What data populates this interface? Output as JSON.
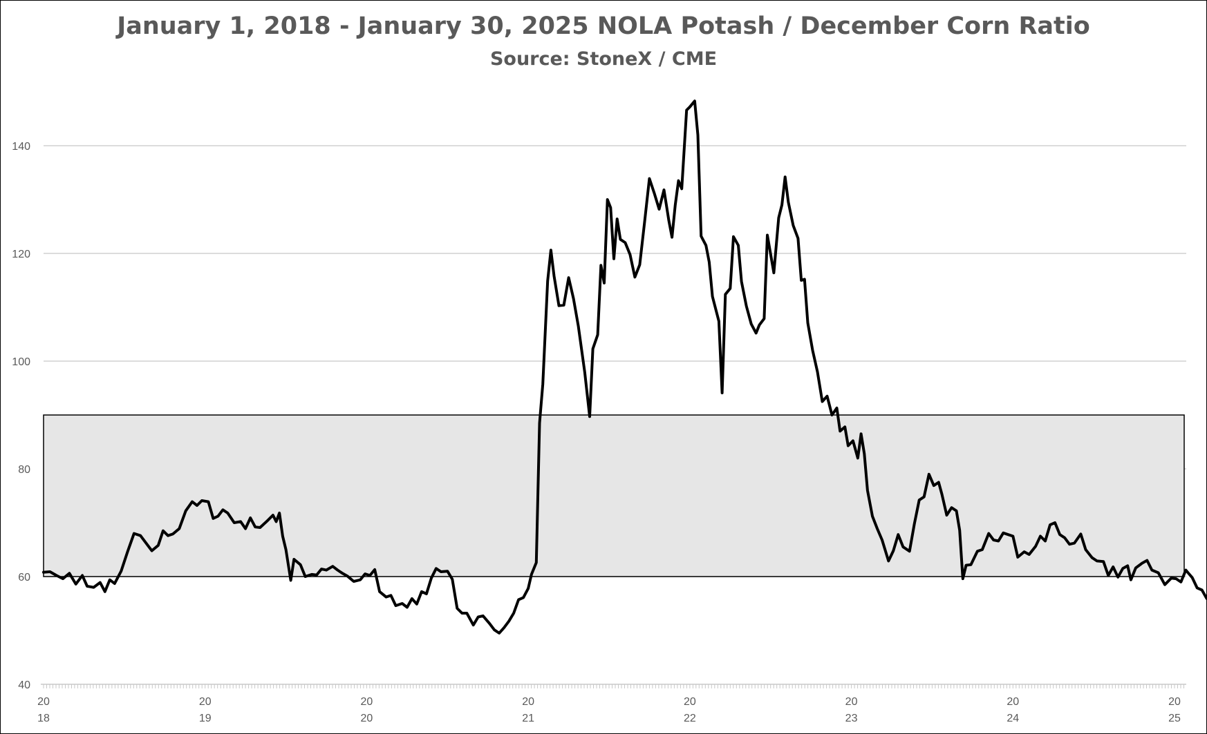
{
  "chart_data": {
    "type": "line",
    "title": "January 1, 2018 - January 30, 2025 NOLA Potash / December Corn Ratio",
    "subtitle": "Source: StoneX / CME",
    "xlabel": "",
    "ylabel": "",
    "ylim": [
      40,
      150
    ],
    "xlim": [
      2018.0,
      2025.08
    ],
    "yticks": [
      40,
      60,
      80,
      100,
      120,
      140
    ],
    "xticks": [
      {
        "x": 2018,
        "line1": "20",
        "line2": "18"
      },
      {
        "x": 2019,
        "line1": "20",
        "line2": "19"
      },
      {
        "x": 2020,
        "line1": "20",
        "line2": "20"
      },
      {
        "x": 2021,
        "line1": "20",
        "line2": "21"
      },
      {
        "x": 2022,
        "line1": "20",
        "line2": "22"
      },
      {
        "x": 2023,
        "line1": "20",
        "line2": "23"
      },
      {
        "x": 2024,
        "line1": "20",
        "line2": "24"
      },
      {
        "x": 2025,
        "line1": "20",
        "line2": "25"
      }
    ],
    "grid": true,
    "band": {
      "from": 60,
      "to": 90,
      "color": "#e6e6e6"
    },
    "series": [
      {
        "color": "#000000",
        "points": [
          [
            2018.0,
            60.8
          ],
          [
            2018.04,
            60.9
          ],
          [
            2018.08,
            60.2
          ],
          [
            2018.12,
            59.6
          ],
          [
            2018.16,
            60.6
          ],
          [
            2018.2,
            58.6
          ],
          [
            2018.24,
            60.2
          ],
          [
            2018.27,
            58.2
          ],
          [
            2018.31,
            58.0
          ],
          [
            2018.35,
            58.9
          ],
          [
            2018.38,
            57.2
          ],
          [
            2018.41,
            59.4
          ],
          [
            2018.44,
            58.7
          ],
          [
            2018.48,
            61.0
          ],
          [
            2018.52,
            64.6
          ],
          [
            2018.56,
            68.0
          ],
          [
            2018.6,
            67.6
          ],
          [
            2018.63,
            66.4
          ],
          [
            2018.67,
            64.8
          ],
          [
            2018.71,
            65.8
          ],
          [
            2018.74,
            68.5
          ],
          [
            2018.77,
            67.6
          ],
          [
            2018.8,
            67.9
          ],
          [
            2018.84,
            68.9
          ],
          [
            2018.88,
            72.2
          ],
          [
            2018.92,
            73.9
          ],
          [
            2018.95,
            73.2
          ],
          [
            2018.98,
            74.1
          ],
          [
            2019.02,
            73.9
          ],
          [
            2019.05,
            70.8
          ],
          [
            2019.08,
            71.2
          ],
          [
            2019.11,
            72.4
          ],
          [
            2019.14,
            71.8
          ],
          [
            2019.18,
            70.0
          ],
          [
            2019.22,
            70.2
          ],
          [
            2019.25,
            68.9
          ],
          [
            2019.28,
            70.9
          ],
          [
            2019.31,
            69.2
          ],
          [
            2019.34,
            69.1
          ],
          [
            2019.38,
            70.2
          ],
          [
            2019.42,
            71.4
          ],
          [
            2019.44,
            70.2
          ],
          [
            2019.46,
            71.8
          ],
          [
            2019.48,
            67.5
          ],
          [
            2019.5,
            65.0
          ],
          [
            2019.53,
            59.3
          ],
          [
            2019.55,
            63.2
          ],
          [
            2019.59,
            62.2
          ],
          [
            2019.62,
            60.0
          ],
          [
            2019.66,
            60.4
          ],
          [
            2019.69,
            60.3
          ],
          [
            2019.72,
            61.4
          ],
          [
            2019.75,
            61.2
          ],
          [
            2019.79,
            61.9
          ],
          [
            2019.82,
            61.2
          ],
          [
            2019.85,
            60.6
          ],
          [
            2019.88,
            60.1
          ],
          [
            2019.92,
            59.1
          ],
          [
            2019.96,
            59.4
          ],
          [
            2019.99,
            60.5
          ],
          [
            2020.02,
            60.2
          ],
          [
            2020.05,
            61.3
          ],
          [
            2020.08,
            57.2
          ],
          [
            2020.12,
            56.2
          ],
          [
            2020.15,
            56.5
          ],
          [
            2020.18,
            54.6
          ],
          [
            2020.22,
            55.0
          ],
          [
            2020.25,
            54.3
          ],
          [
            2020.28,
            55.9
          ],
          [
            2020.31,
            54.9
          ],
          [
            2020.34,
            57.2
          ],
          [
            2020.37,
            56.8
          ],
          [
            2020.4,
            59.7
          ],
          [
            2020.43,
            61.5
          ],
          [
            2020.46,
            60.9
          ],
          [
            2020.5,
            61.0
          ],
          [
            2020.53,
            59.5
          ],
          [
            2020.56,
            54.1
          ],
          [
            2020.59,
            53.2
          ],
          [
            2020.62,
            53.2
          ],
          [
            2020.66,
            51.0
          ],
          [
            2020.69,
            52.5
          ],
          [
            2020.72,
            52.7
          ],
          [
            2020.76,
            51.3
          ],
          [
            2020.79,
            50.1
          ],
          [
            2020.82,
            49.5
          ],
          [
            2020.85,
            50.5
          ],
          [
            2020.88,
            51.7
          ],
          [
            2020.91,
            53.2
          ],
          [
            2020.94,
            55.7
          ],
          [
            2020.97,
            56.1
          ],
          [
            2021.0,
            57.8
          ],
          [
            2021.02,
            60.4
          ],
          [
            2021.05,
            62.6
          ],
          [
            2021.07,
            88.5
          ],
          [
            2021.09,
            95.7
          ],
          [
            2021.12,
            114.9
          ],
          [
            2021.14,
            120.6
          ],
          [
            2021.16,
            115.8
          ],
          [
            2021.19,
            110.3
          ],
          [
            2021.22,
            110.4
          ],
          [
            2021.25,
            115.5
          ],
          [
            2021.28,
            111.6
          ],
          [
            2021.31,
            106.5
          ],
          [
            2021.35,
            97.9
          ],
          [
            2021.38,
            89.7
          ],
          [
            2021.4,
            102.3
          ],
          [
            2021.43,
            104.9
          ],
          [
            2021.45,
            117.8
          ],
          [
            2021.47,
            114.5
          ],
          [
            2021.49,
            130.0
          ],
          [
            2021.51,
            128.5
          ],
          [
            2021.53,
            119.0
          ],
          [
            2021.55,
            126.4
          ],
          [
            2021.57,
            122.6
          ],
          [
            2021.6,
            122.0
          ],
          [
            2021.63,
            119.8
          ],
          [
            2021.66,
            115.6
          ],
          [
            2021.69,
            117.9
          ],
          [
            2021.72,
            125.8
          ],
          [
            2021.75,
            133.9
          ],
          [
            2021.78,
            131.2
          ],
          [
            2021.81,
            128.2
          ],
          [
            2021.84,
            131.8
          ],
          [
            2021.87,
            126.1
          ],
          [
            2021.89,
            123.0
          ],
          [
            2021.91,
            129.0
          ],
          [
            2021.93,
            133.5
          ],
          [
            2021.95,
            132.0
          ],
          [
            2021.98,
            146.6
          ],
          [
            2022.0,
            147.2
          ],
          [
            2022.03,
            148.3
          ],
          [
            2022.05,
            142.0
          ],
          [
            2022.07,
            123.2
          ],
          [
            2022.1,
            121.5
          ],
          [
            2022.12,
            118.4
          ],
          [
            2022.14,
            112.0
          ],
          [
            2022.18,
            107.4
          ],
          [
            2022.2,
            94.1
          ],
          [
            2022.22,
            112.4
          ],
          [
            2022.25,
            113.5
          ],
          [
            2022.27,
            123.1
          ],
          [
            2022.3,
            121.5
          ],
          [
            2022.32,
            114.8
          ],
          [
            2022.35,
            110.2
          ],
          [
            2022.38,
            106.9
          ],
          [
            2022.41,
            105.2
          ],
          [
            2022.43,
            106.7
          ],
          [
            2022.46,
            107.9
          ],
          [
            2022.48,
            123.4
          ],
          [
            2022.52,
            116.4
          ],
          [
            2022.55,
            126.6
          ],
          [
            2022.57,
            129.0
          ],
          [
            2022.59,
            134.2
          ],
          [
            2022.61,
            129.5
          ],
          [
            2022.64,
            125.2
          ],
          [
            2022.67,
            122.8
          ],
          [
            2022.69,
            115.0
          ],
          [
            2022.71,
            115.2
          ],
          [
            2022.73,
            107.1
          ],
          [
            2022.76,
            102.0
          ],
          [
            2022.79,
            98.0
          ],
          [
            2022.82,
            92.5
          ],
          [
            2022.85,
            93.5
          ],
          [
            2022.88,
            90.0
          ],
          [
            2022.91,
            91.3
          ],
          [
            2022.93,
            87.0
          ],
          [
            2022.96,
            87.8
          ],
          [
            2022.98,
            84.3
          ],
          [
            2023.01,
            85.2
          ],
          [
            2023.04,
            82.0
          ],
          [
            2023.06,
            86.5
          ],
          [
            2023.08,
            82.8
          ],
          [
            2023.1,
            76.0
          ],
          [
            2023.13,
            71.2
          ],
          [
            2023.16,
            68.9
          ],
          [
            2023.19,
            66.8
          ],
          [
            2023.23,
            62.9
          ],
          [
            2023.26,
            64.8
          ],
          [
            2023.29,
            67.8
          ],
          [
            2023.32,
            65.5
          ],
          [
            2023.36,
            64.7
          ],
          [
            2023.39,
            69.8
          ],
          [
            2023.42,
            74.2
          ],
          [
            2023.45,
            74.8
          ],
          [
            2023.48,
            79.0
          ],
          [
            2023.51,
            76.9
          ],
          [
            2023.54,
            77.5
          ],
          [
            2023.56,
            75.3
          ],
          [
            2023.59,
            71.4
          ],
          [
            2023.62,
            72.8
          ],
          [
            2023.65,
            72.2
          ],
          [
            2023.67,
            68.6
          ],
          [
            2023.69,
            59.6
          ],
          [
            2023.71,
            62.1
          ],
          [
            2023.74,
            62.2
          ],
          [
            2023.78,
            64.7
          ],
          [
            2023.81,
            65.0
          ],
          [
            2023.85,
            68.0
          ],
          [
            2023.88,
            66.8
          ],
          [
            2023.91,
            66.6
          ],
          [
            2023.94,
            68.1
          ],
          [
            2023.97,
            67.8
          ],
          [
            2024.0,
            67.5
          ],
          [
            2024.03,
            63.6
          ],
          [
            2024.07,
            64.6
          ],
          [
            2024.1,
            64.1
          ],
          [
            2024.14,
            65.6
          ],
          [
            2024.17,
            67.5
          ],
          [
            2024.2,
            66.6
          ],
          [
            2024.23,
            69.6
          ],
          [
            2024.26,
            70.0
          ],
          [
            2024.29,
            67.8
          ],
          [
            2024.32,
            67.2
          ],
          [
            2024.35,
            66.0
          ],
          [
            2024.38,
            66.2
          ],
          [
            2024.42,
            67.9
          ],
          [
            2024.45,
            65.0
          ],
          [
            2024.49,
            63.5
          ],
          [
            2024.52,
            62.9
          ],
          [
            2024.56,
            62.8
          ],
          [
            2024.59,
            60.2
          ],
          [
            2024.62,
            61.8
          ],
          [
            2024.65,
            59.9
          ],
          [
            2024.68,
            61.5
          ],
          [
            2024.71,
            62.0
          ],
          [
            2024.73,
            59.4
          ],
          [
            2024.76,
            61.6
          ],
          [
            2024.8,
            62.5
          ],
          [
            2024.83,
            63.0
          ],
          [
            2024.86,
            61.2
          ],
          [
            2024.9,
            60.7
          ],
          [
            2024.94,
            58.5
          ],
          [
            2024.98,
            59.7
          ],
          [
            2025.01,
            59.6
          ],
          [
            2025.04,
            59.0
          ],
          [
            2025.07,
            61.2
          ],
          [
            2025.09,
            60.5
          ],
          [
            2025.11,
            59.8
          ],
          [
            2025.14,
            57.9
          ],
          [
            2025.17,
            57.5
          ],
          [
            2025.2,
            55.9
          ],
          [
            2025.22,
            55.8
          ],
          [
            2025.24,
            57.2
          ]
        ]
      }
    ]
  }
}
